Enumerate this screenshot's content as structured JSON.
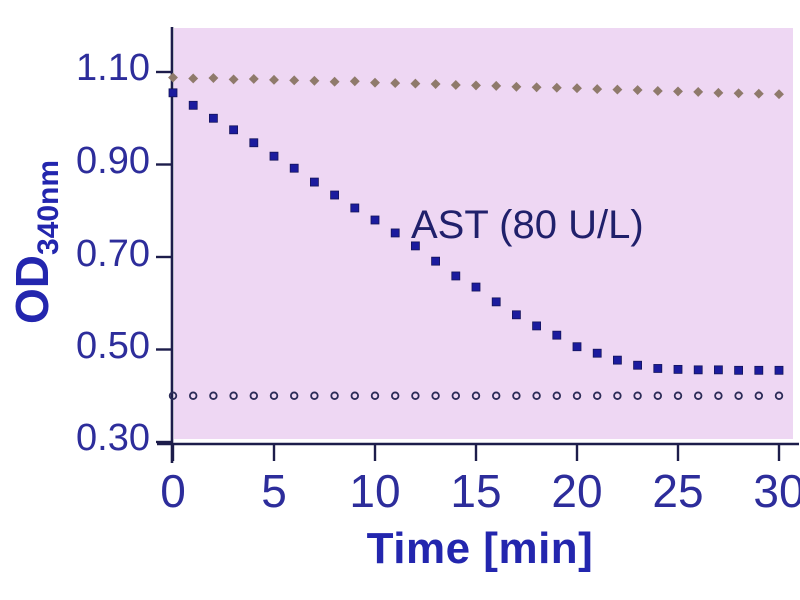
{
  "colors": {
    "axis": "#1d1d4b",
    "tick_text": "#2d2d9b",
    "axis_title_text": "#2326ae",
    "annotation_text": "#20206b",
    "figure_bg": "#ffffff"
  },
  "chart_data": {
    "type": "scatter",
    "title": "",
    "xlabel": "Time [min]",
    "ylabel_main": "OD",
    "ylabel_sub": "340nm",
    "annotation": "AST (80 U/L)",
    "grid": false,
    "legend": "none",
    "plot_bg": "#eed7f3",
    "xlim": [
      0,
      30.6
    ],
    "ylim": [
      0.3,
      1.19
    ],
    "x_ticks": [
      0,
      5,
      10,
      15,
      20,
      25,
      30
    ],
    "x_tick_labels": [
      "0",
      "5",
      "10",
      "15",
      "20",
      "25",
      "30"
    ],
    "y_ticks": [
      1.1,
      0.9,
      0.7,
      0.5,
      0.3
    ],
    "y_tick_labels": [
      "1.10",
      "0.90",
      "0.70",
      "0.50",
      "0.30"
    ],
    "x_minutes": [
      0,
      1,
      2,
      3,
      4,
      5,
      6,
      7,
      8,
      9,
      10,
      11,
      12,
      13,
      14,
      15,
      16,
      17,
      18,
      19,
      20,
      21,
      22,
      23,
      24,
      25,
      26,
      27,
      28,
      29,
      30
    ],
    "series": [
      {
        "name": "upper-reference-diamonds",
        "marker": "diamond",
        "color": "#8f7a6b",
        "values": [
          1.088,
          1.086,
          1.087,
          1.084,
          1.085,
          1.083,
          1.082,
          1.081,
          1.079,
          1.08,
          1.077,
          1.076,
          1.075,
          1.074,
          1.072,
          1.071,
          1.07,
          1.068,
          1.067,
          1.066,
          1.065,
          1.063,
          1.062,
          1.061,
          1.059,
          1.058,
          1.057,
          1.055,
          1.054,
          1.053,
          1.052
        ]
      },
      {
        "name": "AST (80 U/L)",
        "marker": "square",
        "color": "#1b1b9e",
        "values": [
          1.055,
          1.028,
          1.0,
          0.975,
          0.947,
          0.918,
          0.892,
          0.862,
          0.834,
          0.806,
          0.78,
          0.752,
          0.724,
          0.691,
          0.659,
          0.635,
          0.603,
          0.575,
          0.551,
          0.531,
          0.506,
          0.492,
          0.477,
          0.466,
          0.459,
          0.457,
          0.456,
          0.456,
          0.455,
          0.455,
          0.455
        ]
      },
      {
        "name": "lower-blank-open-circles",
        "marker": "open-circle",
        "color": "#2b2b57",
        "values": [
          0.4,
          0.4,
          0.4,
          0.4,
          0.4,
          0.4,
          0.4,
          0.4,
          0.4,
          0.4,
          0.4,
          0.4,
          0.4,
          0.4,
          0.4,
          0.4,
          0.4,
          0.4,
          0.4,
          0.4,
          0.4,
          0.4,
          0.4,
          0.4,
          0.4,
          0.4,
          0.4,
          0.4,
          0.4,
          0.4,
          0.4
        ]
      }
    ]
  }
}
